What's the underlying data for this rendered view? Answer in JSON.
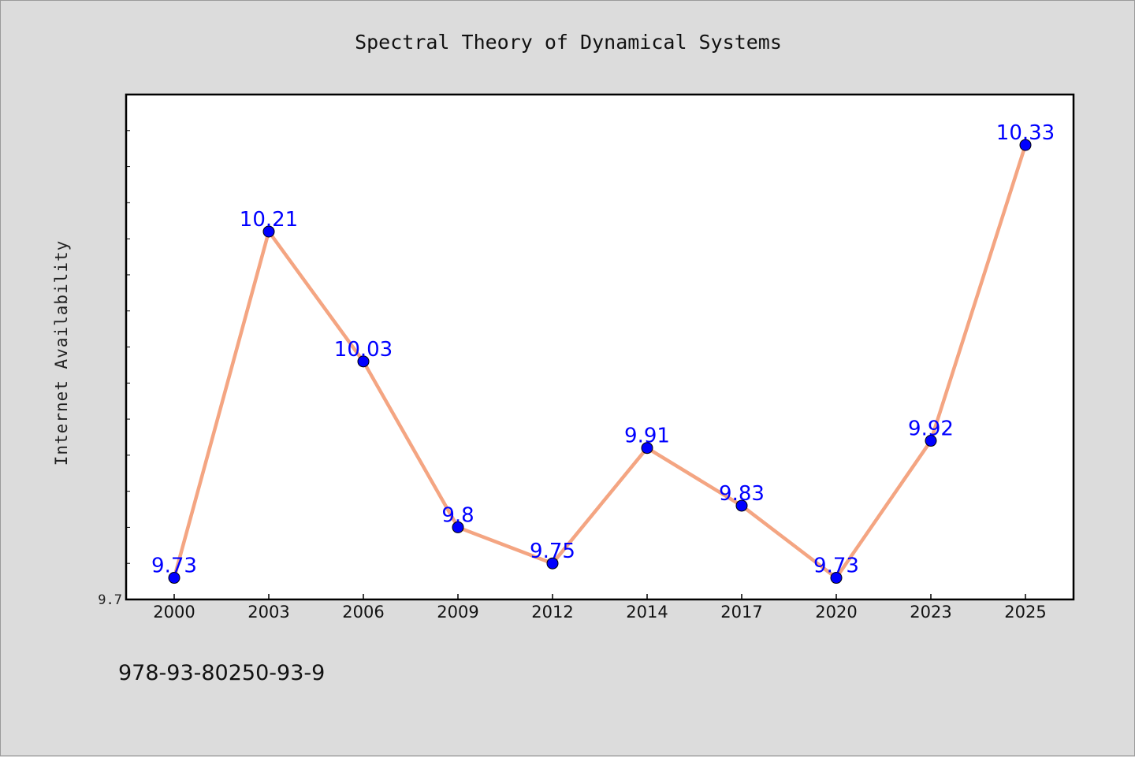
{
  "chart_data": {
    "type": "line",
    "title": "Spectral Theory of Dynamical Systems",
    "xlabel": "",
    "ylabel": "Internet Availability",
    "categories": [
      "2000",
      "2003",
      "2006",
      "2009",
      "2012",
      "2014",
      "2017",
      "2020",
      "2023",
      "2025"
    ],
    "series": [
      {
        "values": [
          9.73,
          10.21,
          10.03,
          9.8,
          9.75,
          9.91,
          9.83,
          9.73,
          9.92,
          10.33
        ],
        "labels": [
          "9.73",
          "10.21",
          "10.03",
          "9.8",
          "9.75",
          "9.91",
          "9.83",
          "9.73",
          "9.92",
          "10.33"
        ]
      }
    ],
    "ylim": [
      9.7,
      10.4
    ],
    "ytick_labels": [
      "9.7"
    ],
    "grid": false,
    "legend": "none",
    "colors": {
      "line": "#f4a582",
      "marker": "#0000ff",
      "data_label": "#0000ff",
      "plot_bg": "#ffffff",
      "page_bg": "#dcdcdc"
    }
  },
  "footer": {
    "isbn": "978-93-80250-93-9"
  }
}
